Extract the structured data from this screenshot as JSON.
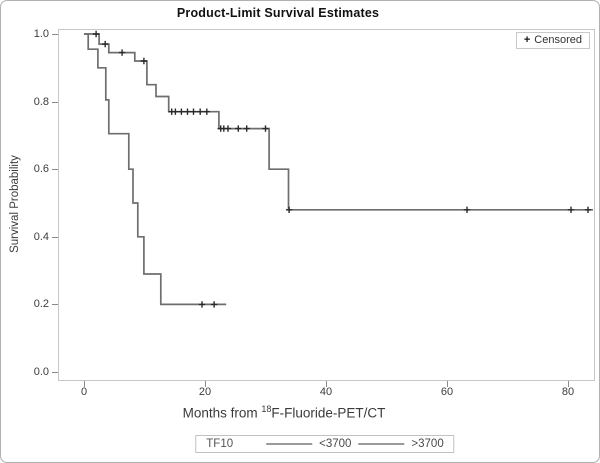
{
  "chart_data": {
    "type": "line",
    "subtype": "kaplan-meier-step",
    "title": "Product-Limit Survival Estimates",
    "ylabel": "Survival Probability",
    "xlabel": "Months from 18F-Fluoride-PET/CT",
    "xlabel_parts": {
      "pre": "Months from ",
      "sup": "18",
      "post": "F-Fluoride-PET/CT"
    },
    "xlim": [
      0,
      84
    ],
    "ylim": [
      0.0,
      1.0
    ],
    "grid": false,
    "x_ticks": [
      {
        "label": "0",
        "value": 0
      },
      {
        "label": "20",
        "value": 20
      },
      {
        "label": "40",
        "value": 40
      },
      {
        "label": "60",
        "value": 60
      },
      {
        "label": "80",
        "value": 80
      }
    ],
    "y_ticks": [
      {
        "label": "1.0",
        "value": 1.0
      },
      {
        "label": "0.8",
        "value": 0.8
      },
      {
        "label": "0.6",
        "value": 0.6
      },
      {
        "label": "0.4",
        "value": 0.4
      },
      {
        "label": "0.2",
        "value": 0.2
      },
      {
        "label": "0.0",
        "value": 0.0
      }
    ],
    "legend": {
      "position": "top-right",
      "censored_plus": "+",
      "censored_label": "Censored"
    },
    "group_legend": {
      "title": "TF10",
      "entries": [
        "<3700",
        ">3700"
      ]
    },
    "line_color": "#6e6e6e",
    "censor_color": "#2a2a2a",
    "series": [
      {
        "name": "<3700",
        "steps": [
          [
            0,
            1.0
          ],
          [
            0.7,
            0.955
          ],
          [
            2.3,
            0.9
          ],
          [
            3.6,
            0.805
          ],
          [
            4.1,
            0.705
          ],
          [
            7.4,
            0.6
          ],
          [
            8.1,
            0.5
          ],
          [
            8.9,
            0.4
          ],
          [
            9.9,
            0.29
          ],
          [
            12.7,
            0.2
          ]
        ],
        "end_time": 23.5,
        "censors": [
          [
            19.5,
            0.2
          ],
          [
            21.5,
            0.2
          ]
        ]
      },
      {
        "name": ">3700",
        "steps": [
          [
            0,
            1.0
          ],
          [
            2.5,
            0.97
          ],
          [
            4.1,
            0.945
          ],
          [
            8.4,
            0.92
          ],
          [
            10.4,
            0.85
          ],
          [
            11.9,
            0.815
          ],
          [
            14.0,
            0.77
          ],
          [
            22.3,
            0.72
          ],
          [
            30.6,
            0.6
          ],
          [
            33.8,
            0.48
          ]
        ],
        "end_time": 84.3,
        "censors": [
          [
            2.0,
            1.0
          ],
          [
            3.5,
            0.97
          ],
          [
            6.3,
            0.945
          ],
          [
            9.9,
            0.92
          ],
          [
            14.5,
            0.77
          ],
          [
            15.1,
            0.77
          ],
          [
            16.1,
            0.77
          ],
          [
            17.1,
            0.77
          ],
          [
            18.1,
            0.77
          ],
          [
            19.2,
            0.77
          ],
          [
            20.3,
            0.77
          ],
          [
            22.6,
            0.72
          ],
          [
            23.1,
            0.72
          ],
          [
            23.8,
            0.72
          ],
          [
            25.5,
            0.72
          ],
          [
            26.9,
            0.72
          ],
          [
            30.0,
            0.72
          ],
          [
            33.9,
            0.48
          ],
          [
            63.3,
            0.48
          ],
          [
            80.5,
            0.48
          ],
          [
            83.3,
            0.48
          ]
        ]
      }
    ]
  }
}
